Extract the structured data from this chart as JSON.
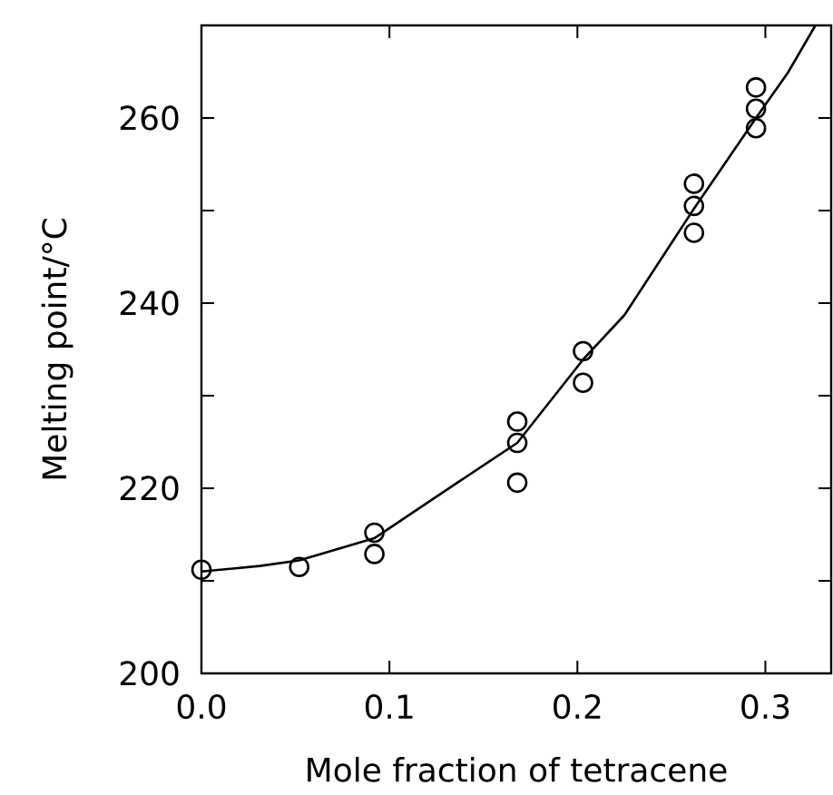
{
  "chart_data": {
    "type": "scatter",
    "xlabel": "Mole fraction of tetracene",
    "ylabel": "Melting point/°C",
    "xlim": [
      0,
      0.335
    ],
    "ylim": [
      200,
      270
    ],
    "xticks": [
      {
        "value": 0,
        "label": "0.0"
      },
      0.1,
      0.2,
      0.3
    ],
    "yticks": [
      200,
      {
        "value": 210,
        "label": null
      },
      220,
      {
        "value": 230,
        "label": null
      },
      240,
      {
        "value": 250,
        "label": null
      },
      260
    ],
    "grid": false,
    "series": [
      {
        "marker": "circle",
        "color": "#000000",
        "x": [
          0.0,
          0.052,
          0.092,
          0.092,
          0.168,
          0.168,
          0.168,
          0.203,
          0.203,
          0.262,
          0.262,
          0.262,
          0.295,
          0.295,
          0.295
        ],
        "values": [
          211.2,
          211.5,
          215.2,
          212.9,
          227.2,
          224.9,
          220.6,
          231.4,
          234.8,
          252.9,
          250.5,
          247.6,
          263.3,
          261.0,
          258.9
        ]
      },
      {
        "type": "line",
        "marker": "none",
        "line_style": "solid",
        "color": "#000000",
        "x": [
          0.0,
          0.031,
          0.052,
          0.092,
          0.128,
          0.168,
          0.203,
          0.225,
          0.262,
          0.295,
          0.312,
          0.3266
        ],
        "values": [
          211.0,
          211.6,
          212.2,
          214.6,
          219.5,
          224.9,
          233.9,
          238.7,
          250.2,
          260.0,
          264.9,
          270.0
        ]
      }
    ]
  }
}
